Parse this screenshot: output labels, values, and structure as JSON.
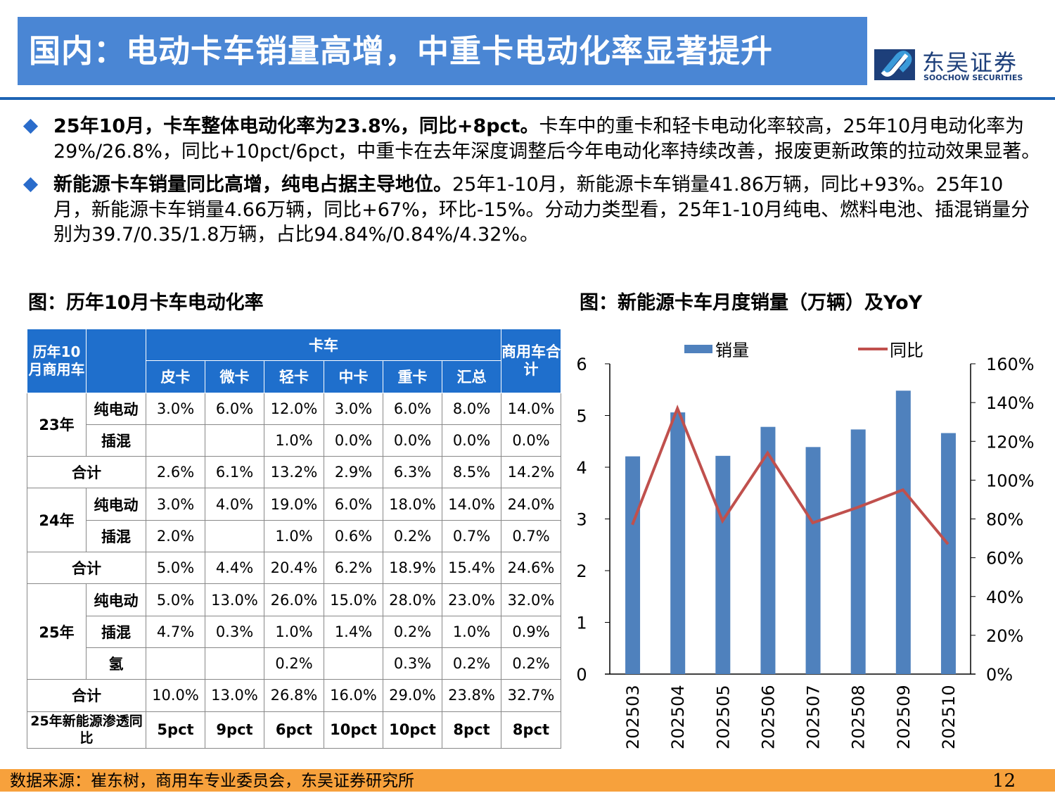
{
  "title": "国内：电动卡车销量高增，中重卡电动化率显著提升",
  "logo": {
    "cn": "东吴证券",
    "en": "SOOCHOW SECURITIES"
  },
  "bullets": [
    {
      "bold": "25年10月，卡车整体电动化率为23.8%，同比+8pct。",
      "text": "卡车中的重卡和轻卡电动化率较高，25年10月电动化率为29%/26.8%，同比+10pct/6pct，中重卡在去年深度调整后今年电动化率持续改善，报废更新政策的拉动效果显著。"
    },
    {
      "bold": "新能源卡车销量同比高增，纯电占据主导地位。",
      "text": "25年1-10月，新能源卡车销量41.86万辆，同比+93%。25年10月，新能源卡车销量4.66万辆，同比+67%，环比-15%。分动力类型看，25年1-10月纯电、燃料电池、插混销量分别为39.7/0.35/1.8万辆，占比94.84%/0.84%/4.32%。"
    }
  ],
  "table_caption": "图：历年10月卡车电动化率",
  "chart_caption": "图：新能源卡车月度销量（万辆）及YoY",
  "table": {
    "corner": "历年10月商用车",
    "truck": "卡车",
    "commercial_total": "商用车合计",
    "cols": [
      "皮卡",
      "微卡",
      "轻卡",
      "中卡",
      "重卡",
      "汇总"
    ],
    "rows": [
      {
        "year": "23年",
        "type": "纯电动",
        "vals": [
          "3.0%",
          "6.0%",
          "12.0%",
          "3.0%",
          "6.0%",
          "8.0%",
          "14.0%"
        ]
      },
      {
        "type": "插混",
        "vals": [
          "",
          "",
          "1.0%",
          "0.0%",
          "0.0%",
          "0.0%",
          "0.0%"
        ]
      },
      {
        "total": "合计",
        "vals": [
          "2.6%",
          "6.1%",
          "13.2%",
          "2.9%",
          "6.3%",
          "8.5%",
          "14.2%"
        ]
      },
      {
        "year": "24年",
        "type": "纯电动",
        "vals": [
          "3.0%",
          "4.0%",
          "19.0%",
          "6.0%",
          "18.0%",
          "14.0%",
          "24.0%"
        ]
      },
      {
        "type": "插混",
        "vals": [
          "2.0%",
          "",
          "1.0%",
          "0.6%",
          "0.2%",
          "0.7%",
          "0.7%"
        ]
      },
      {
        "total": "合计",
        "vals": [
          "5.0%",
          "4.4%",
          "20.4%",
          "6.2%",
          "18.9%",
          "15.4%",
          "24.6%"
        ]
      },
      {
        "year": "25年",
        "type": "纯电动",
        "vals": [
          "5.0%",
          "13.0%",
          "26.0%",
          "15.0%",
          "28.0%",
          "23.0%",
          "32.0%"
        ]
      },
      {
        "type": "插混",
        "vals": [
          "4.7%",
          "0.3%",
          "1.0%",
          "1.4%",
          "0.2%",
          "1.0%",
          "0.9%"
        ]
      },
      {
        "type": "氢",
        "vals": [
          "",
          "",
          "0.2%",
          "",
          "0.3%",
          "0.2%",
          "0.2%"
        ]
      },
      {
        "total": "合计",
        "vals": [
          "10.0%",
          "13.0%",
          "26.8%",
          "16.0%",
          "29.0%",
          "23.8%",
          "32.7%"
        ]
      },
      {
        "total": "25年新能源渗透同比",
        "vals": [
          "5pct",
          "9pct",
          "6pct",
          "10pct",
          "10pct",
          "8pct",
          "8pct"
        ]
      }
    ]
  },
  "chart_data": {
    "type": "bar+line",
    "categories": [
      "202503",
      "202504",
      "202505",
      "202506",
      "202507",
      "202508",
      "202509",
      "202510"
    ],
    "series": [
      {
        "name": "销量",
        "type": "bar",
        "axis": "left",
        "color": "#4f81bd",
        "values": [
          4.21,
          5.06,
          4.22,
          4.78,
          4.39,
          4.73,
          5.48,
          4.66
        ]
      },
      {
        "name": "同比",
        "type": "line",
        "axis": "right",
        "color": "#c0504d",
        "values": [
          77,
          137,
          79,
          114,
          78,
          86,
          95,
          67
        ]
      }
    ],
    "y_left": {
      "min": 0,
      "max": 6,
      "ticks": [
        "0",
        "1",
        "2",
        "3",
        "4",
        "5",
        "6"
      ]
    },
    "y_right": {
      "min": 0,
      "max": 160,
      "ticks": [
        "0%",
        "20%",
        "40%",
        "60%",
        "80%",
        "100%",
        "120%",
        "140%",
        "160%"
      ]
    },
    "legend": "top"
  },
  "footer": {
    "source": "数据来源：崔东树，商用车专业委员会，东吴证券研究所",
    "page": "12"
  }
}
